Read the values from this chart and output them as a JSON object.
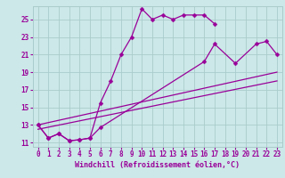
{
  "xlabel": "Windchill (Refroidissement éolien,°C)",
  "bg_color": "#cce8e8",
  "grid_color": "#aacccc",
  "line_color": "#990099",
  "xlim": [
    -0.5,
    23.5
  ],
  "ylim": [
    10.5,
    26.5
  ],
  "xticks": [
    0,
    1,
    2,
    3,
    4,
    5,
    6,
    7,
    8,
    9,
    10,
    11,
    12,
    13,
    14,
    15,
    16,
    17,
    18,
    19,
    20,
    21,
    22,
    23
  ],
  "yticks": [
    11,
    13,
    15,
    17,
    19,
    21,
    23,
    25
  ],
  "curve1_x": [
    0,
    1,
    2,
    3,
    4,
    5,
    6,
    7,
    8,
    9,
    10,
    11,
    12,
    13,
    14,
    15,
    16,
    17
  ],
  "curve1_y": [
    13.0,
    11.5,
    12.0,
    11.2,
    11.3,
    11.5,
    15.5,
    18.0,
    21.0,
    23.0,
    26.2,
    25.0,
    25.5,
    25.0,
    25.5,
    25.5,
    25.5,
    24.5
  ],
  "curve2_x": [
    0,
    1,
    2,
    3,
    4,
    5,
    6,
    16,
    17,
    19,
    21,
    22,
    23
  ],
  "curve2_y": [
    13.0,
    11.5,
    12.0,
    11.2,
    11.3,
    11.5,
    12.7,
    20.2,
    22.2,
    20.0,
    22.2,
    22.5,
    21.0
  ],
  "line1_x": [
    0,
    23
  ],
  "line1_y": [
    13.0,
    19.0
  ],
  "line2_x": [
    0,
    23
  ],
  "line2_y": [
    12.5,
    18.0
  ],
  "markersize": 2.5,
  "linewidth": 0.9,
  "tick_fontsize": 5.5,
  "xlabel_fontsize": 6.0
}
